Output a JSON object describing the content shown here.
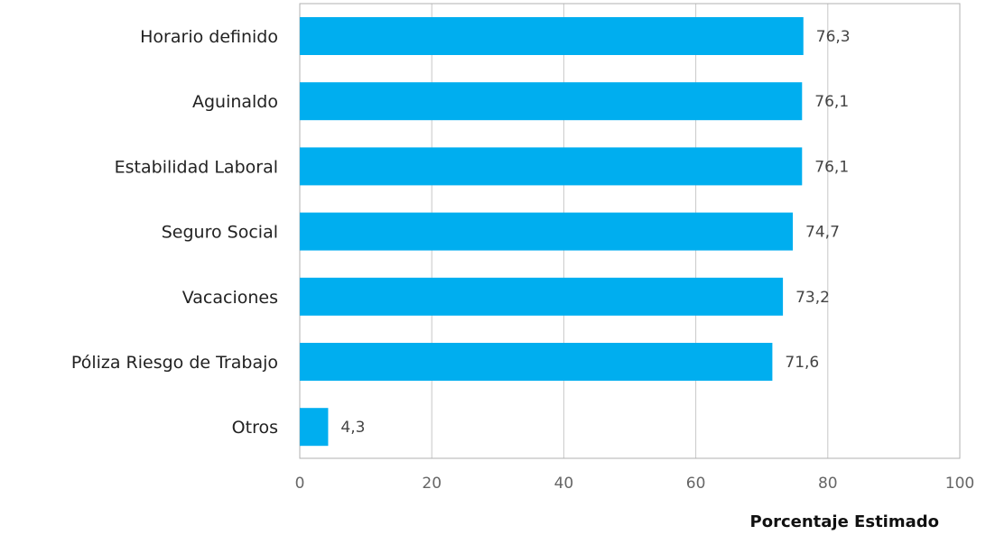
{
  "chart_data": {
    "type": "bar",
    "orientation": "horizontal",
    "categories": [
      "Horario definido",
      "Aguinaldo",
      "Estabilidad Laboral",
      "Seguro Social",
      "Vacaciones",
      "Póliza Riesgo de Trabajo",
      "Otros"
    ],
    "values": [
      76.3,
      76.1,
      76.1,
      74.7,
      73.2,
      71.6,
      4.3
    ],
    "data_labels": [
      "76,3",
      "76,1",
      "76,1",
      "74,7",
      "73,2",
      "71,6",
      "4,3"
    ],
    "xlabel": "Porcentaje Estimado",
    "ylabel": "",
    "xlim": [
      0,
      100
    ],
    "x_ticks": [
      0,
      20,
      40,
      60,
      80,
      100
    ],
    "x_tick_labels": [
      "0",
      "20",
      "40",
      "60",
      "80",
      "100"
    ],
    "grid": true,
    "legend": "none",
    "colors": {
      "bar": "#00AEEF",
      "grid": "#c8c8c8",
      "frame": "#b0b0b0"
    }
  }
}
